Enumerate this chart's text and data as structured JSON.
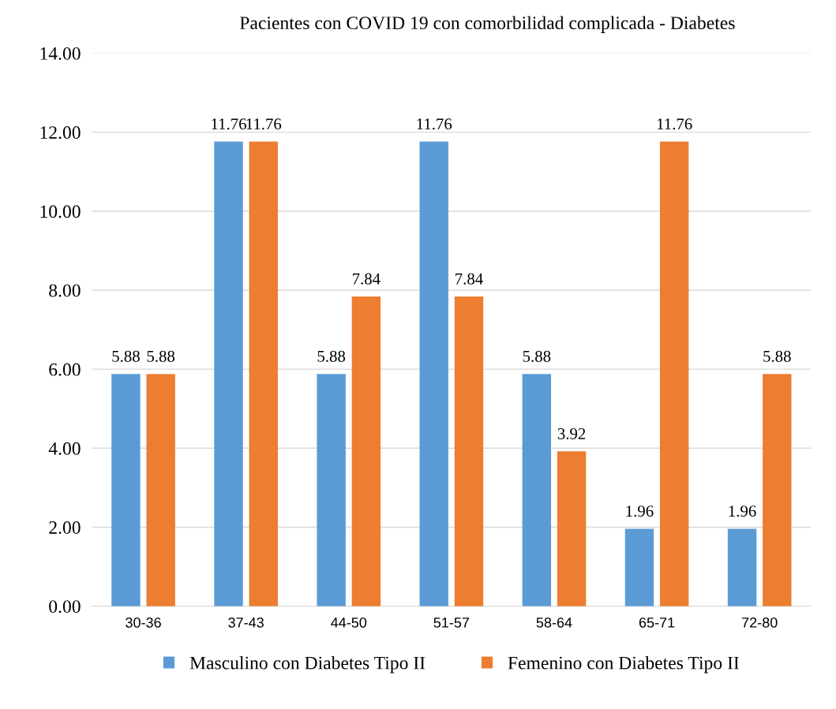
{
  "chart_data": {
    "type": "bar",
    "title": "Pacientes con COVID 19 con comorbilidad complicada - Diabetes",
    "categories": [
      "30-36",
      "37-43",
      "44-50",
      "51-57",
      "58-64",
      "65-71",
      "72-80"
    ],
    "series": [
      {
        "name": "Masculino con Diabetes Tipo II",
        "color": "#5b9bd5",
        "values": [
          5.88,
          11.76,
          5.88,
          11.76,
          5.88,
          1.96,
          1.96
        ]
      },
      {
        "name": "Femenino con Diabetes Tipo II",
        "color": "#ed7d31",
        "values": [
          5.88,
          11.76,
          7.84,
          7.84,
          3.92,
          11.76,
          5.88
        ]
      }
    ],
    "ylim": [
      0,
      14
    ],
    "yticks": [
      {
        "value": 0,
        "label": "0.00"
      },
      {
        "value": 2,
        "label": "2.00"
      },
      {
        "value": 4,
        "label": "4.00"
      },
      {
        "value": 6,
        "label": "6.00"
      },
      {
        "value": 8,
        "label": "8.00"
      },
      {
        "value": 10,
        "label": "10.00"
      },
      {
        "value": 12,
        "label": "12.00"
      },
      {
        "value": 14,
        "label": "14.00"
      }
    ],
    "grid": "y",
    "legend": "bottom",
    "data_labels": true
  }
}
